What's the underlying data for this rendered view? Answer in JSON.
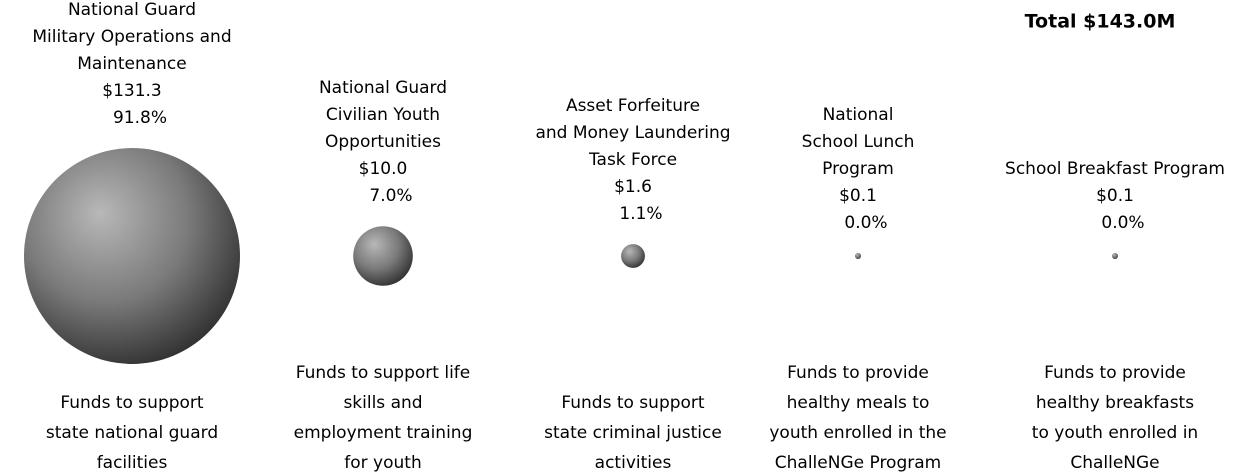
{
  "chart_data": {
    "type": "bubble",
    "title": "Total $143.0M",
    "categories": [
      [
        "National Guard",
        "Military Operations and",
        "Maintenance"
      ],
      [
        "National Guard",
        "Civilian Youth",
        "Opportunities"
      ],
      [
        "Asset Forfeiture",
        "and Money Laundering",
        "Task Force"
      ],
      [
        "National",
        "School Lunch",
        "Program"
      ],
      [
        "School Breakfast Program"
      ]
    ],
    "values": [
      131.3,
      10.0,
      1.6,
      0.1,
      0.1
    ],
    "value_labels": [
      "$131.3",
      "$10.0",
      "$1.6",
      "$0.1",
      "$0.1"
    ],
    "percent_labels": [
      "91.8%",
      "7.0%",
      "1.1%",
      "0.0%",
      "0.0%"
    ],
    "descriptions": [
      [
        "Funds to support",
        "state national guard",
        "facilities"
      ],
      [
        "Funds to support life",
        "skills and",
        "employment training",
        "for youth"
      ],
      [
        "Funds to support",
        "state criminal justice",
        "activities"
      ],
      [
        "Funds to provide",
        "healthy meals to",
        "youth enrolled in the",
        "ChalleNGe Program"
      ],
      [
        "Funds to provide",
        "healthy breakfasts",
        "to youth enrolled in",
        "ChalleNGe"
      ]
    ]
  }
}
